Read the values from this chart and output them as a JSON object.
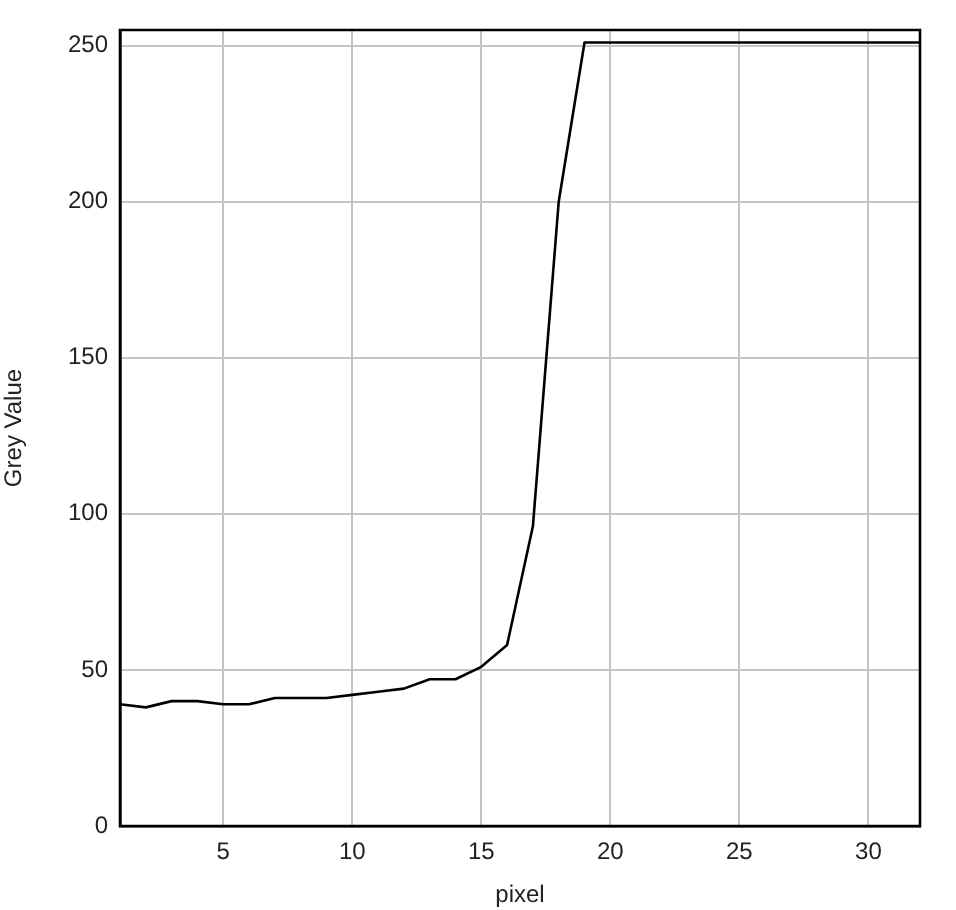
{
  "chart_data": {
    "type": "line",
    "xlabel": "pixel",
    "ylabel": "Grey Value",
    "x": [
      1,
      2,
      3,
      4,
      5,
      6,
      7,
      8,
      9,
      10,
      11,
      12,
      13,
      14,
      15,
      16,
      17,
      18,
      19,
      20,
      21,
      22,
      23,
      24,
      25,
      26,
      27,
      28,
      29,
      30,
      31,
      32
    ],
    "series": [
      {
        "color": "#000000",
        "values": [
          39,
          38,
          40,
          40,
          39,
          39,
          41,
          41,
          41,
          42,
          43,
          44,
          47,
          47,
          51,
          58,
          96,
          200,
          251,
          251,
          251,
          251,
          251,
          251,
          251,
          251,
          251,
          251,
          251,
          251,
          251,
          251
        ]
      }
    ],
    "xlim": [
      1,
      32
    ],
    "ylim": [
      0,
      255
    ],
    "xticks": [
      5,
      10,
      15,
      20,
      25,
      30
    ],
    "yticks": [
      0,
      50,
      100,
      150,
      200,
      250
    ],
    "grid": true,
    "marker": "none",
    "line_style": "solid"
  }
}
